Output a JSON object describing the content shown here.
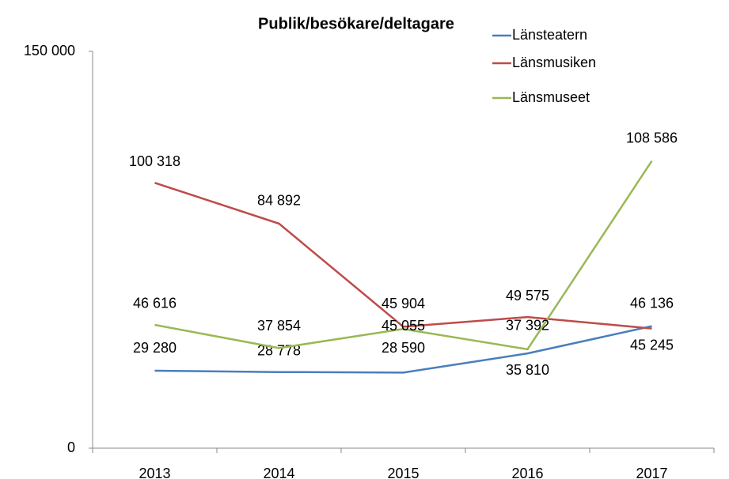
{
  "chart_data": {
    "type": "line",
    "title": "Publik/besökare/deltagare",
    "categories": [
      "2013",
      "2014",
      "2015",
      "2016",
      "2017"
    ],
    "series": [
      {
        "name": "Länsteatern",
        "color": "#4a7ebb",
        "values": [
          29280,
          28778,
          28590,
          35810,
          46136
        ],
        "value_labels": [
          "29 280",
          "28 778",
          "28 590",
          "35 810",
          "46 136"
        ]
      },
      {
        "name": "Länsmusiken",
        "color": "#be4b48",
        "values": [
          100318,
          84892,
          45904,
          49575,
          45245
        ],
        "value_labels": [
          "100 318",
          "84 892",
          "45 904",
          "49 575",
          "45 245"
        ]
      },
      {
        "name": "Länsmuseet",
        "color": "#98b954",
        "values": [
          46616,
          37854,
          45055,
          37392,
          108586
        ],
        "value_labels": [
          "46 616",
          "37 854",
          "45 055",
          "37 392",
          "108 586"
        ]
      }
    ],
    "ylim": [
      0,
      150000
    ],
    "yticks": [
      0,
      {
        "value": 150000,
        "label": "150 000"
      }
    ],
    "grid": false,
    "legend": "top-right"
  }
}
